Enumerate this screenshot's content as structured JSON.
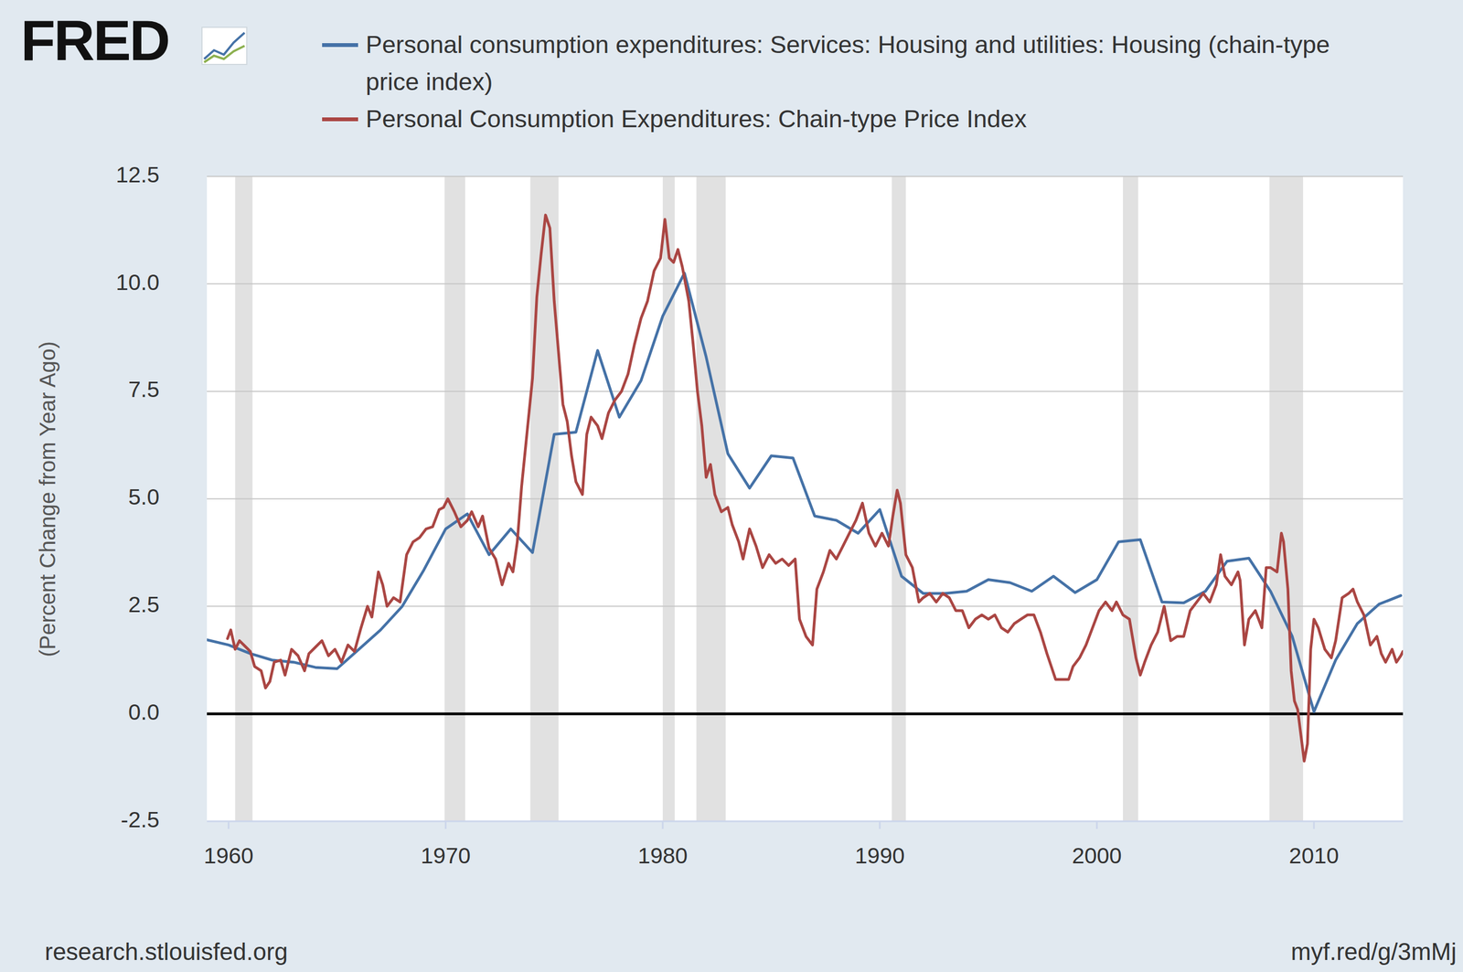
{
  "chart_data": {
    "type": "line",
    "logo": "FRED",
    "y_label": "(Percent Change from Year Ago)",
    "source": "research.stlouisfed.org",
    "short_url": "myf.red/g/3mMj",
    "xlim": [
      1959,
      2014.1
    ],
    "xticks": [
      1960,
      1970,
      1980,
      1990,
      2000,
      2010
    ],
    "ylim": [
      -2.5,
      12.5
    ],
    "yticks": [
      -2.5,
      {
        "value": 0,
        "label": "0.0"
      },
      2.5,
      {
        "value": 5,
        "label": "5.0"
      },
      7.5,
      {
        "value": 10,
        "label": "10.0"
      },
      12.5
    ],
    "grid": true,
    "legend": "top",
    "recessions": [
      [
        1960.3,
        1961.1
      ],
      [
        1969.95,
        1970.9
      ],
      [
        1973.9,
        1975.2
      ],
      [
        1980.0,
        1980.55
      ],
      [
        1981.55,
        1982.9
      ],
      [
        1990.55,
        1991.2
      ],
      [
        2001.2,
        2001.9
      ],
      [
        2007.95,
        2009.5
      ]
    ],
    "series": [
      {
        "name": "Personal consumption expenditures: Services: Housing and utilities: Housing (chain-type price index)",
        "color": "#4572a7",
        "x": [
          1959,
          1960,
          1961,
          1962,
          1963,
          1964,
          1965,
          1966,
          1967,
          1968,
          1969,
          1970,
          1971,
          1972,
          1973,
          1974,
          1975,
          1976,
          1977,
          1978,
          1979,
          1980,
          1981,
          1982,
          1983,
          1984,
          1985,
          1986,
          1987,
          1988,
          1989,
          1990,
          1991,
          1992,
          1993,
          1994,
          1995,
          1996,
          1997,
          1998,
          1999,
          2000,
          2001,
          2002,
          2003,
          2004,
          2005,
          2006,
          2007,
          2008,
          2009,
          2010,
          2011,
          2012,
          2013,
          2014
        ],
        "values": [
          1.72,
          1.6,
          1.4,
          1.25,
          1.2,
          1.08,
          1.05,
          1.5,
          1.95,
          2.5,
          3.35,
          4.3,
          4.65,
          3.7,
          4.3,
          3.75,
          6.5,
          6.55,
          8.45,
          6.9,
          7.75,
          9.25,
          10.25,
          8.3,
          6.05,
          5.25,
          6.0,
          5.95,
          4.6,
          4.5,
          4.2,
          4.75,
          3.2,
          2.8,
          2.8,
          2.85,
          3.12,
          3.05,
          2.85,
          3.2,
          2.82,
          3.12,
          4.0,
          4.05,
          2.6,
          2.58,
          2.85,
          3.55,
          3.62,
          2.85,
          1.8,
          0.05,
          1.25,
          2.1,
          2.55,
          2.75
        ]
      },
      {
        "name": "Personal Consumption Expenditures: Chain-type Price Index",
        "color": "#aa4643",
        "x": [
          1959.95,
          1960.1,
          1960.3,
          1960.5,
          1960.8,
          1961.0,
          1961.2,
          1961.5,
          1961.7,
          1961.9,
          1962.1,
          1962.4,
          1962.6,
          1962.9,
          1963.2,
          1963.5,
          1963.7,
          1964.0,
          1964.3,
          1964.6,
          1964.9,
          1965.2,
          1965.5,
          1965.8,
          1966.1,
          1966.4,
          1966.6,
          1966.9,
          1967.1,
          1967.3,
          1967.6,
          1967.9,
          1968.2,
          1968.5,
          1968.8,
          1969.1,
          1969.4,
          1969.7,
          1969.9,
          1970.1,
          1970.4,
          1970.7,
          1971.0,
          1971.2,
          1971.5,
          1971.7,
          1972.0,
          1972.3,
          1972.6,
          1972.9,
          1973.1,
          1973.3,
          1973.5,
          1973.7,
          1974.0,
          1974.2,
          1974.4,
          1974.6,
          1974.8,
          1975.0,
          1975.2,
          1975.4,
          1975.6,
          1975.8,
          1976.0,
          1976.3,
          1976.5,
          1976.7,
          1977.0,
          1977.2,
          1977.5,
          1977.8,
          1978.1,
          1978.4,
          1978.7,
          1979.0,
          1979.3,
          1979.6,
          1979.9,
          1980.1,
          1980.3,
          1980.5,
          1980.7,
          1980.9,
          1981.2,
          1981.4,
          1981.6,
          1981.8,
          1982.0,
          1982.2,
          1982.4,
          1982.7,
          1983.0,
          1983.2,
          1983.5,
          1983.7,
          1984.0,
          1984.3,
          1984.6,
          1984.9,
          1985.2,
          1985.5,
          1985.8,
          1986.1,
          1986.3,
          1986.6,
          1986.9,
          1987.1,
          1987.4,
          1987.7,
          1988.0,
          1988.3,
          1988.6,
          1988.9,
          1989.2,
          1989.5,
          1989.8,
          1990.1,
          1990.4,
          1990.6,
          1990.8,
          1990.95,
          1991.2,
          1991.5,
          1991.8,
          1992.0,
          1992.3,
          1992.6,
          1992.9,
          1993.2,
          1993.5,
          1993.8,
          1994.1,
          1994.4,
          1994.7,
          1995.0,
          1995.3,
          1995.6,
          1995.9,
          1996.2,
          1996.5,
          1996.8,
          1997.1,
          1997.4,
          1997.7,
          1997.9,
          1998.1,
          1998.4,
          1998.7,
          1998.9,
          1999.2,
          1999.5,
          1999.8,
          2000.1,
          2000.4,
          2000.7,
          2000.9,
          2001.2,
          2001.5,
          2001.8,
          2002.0,
          2002.2,
          2002.5,
          2002.8,
          2003.1,
          2003.4,
          2003.7,
          2004.0,
          2004.3,
          2004.6,
          2004.9,
          2005.2,
          2005.5,
          2005.7,
          2005.9,
          2006.2,
          2006.5,
          2006.6,
          2006.8,
          2007.0,
          2007.3,
          2007.6,
          2007.8,
          2008.0,
          2008.3,
          2008.5,
          2008.6,
          2008.8,
          2008.95,
          2009.1,
          2009.25,
          2009.4,
          2009.55,
          2009.7,
          2009.85,
          2010.0,
          2010.2,
          2010.5,
          2010.8,
          2011.0,
          2011.3,
          2011.6,
          2011.8,
          2012.0,
          2012.3,
          2012.6,
          2012.9,
          2013.1,
          2013.3,
          2013.6,
          2013.8,
          2014.0,
          2014.1
        ],
        "values": [
          1.75,
          1.95,
          1.5,
          1.7,
          1.55,
          1.45,
          1.1,
          1.0,
          0.6,
          0.75,
          1.2,
          1.25,
          0.9,
          1.5,
          1.35,
          1.0,
          1.4,
          1.55,
          1.7,
          1.35,
          1.5,
          1.2,
          1.6,
          1.45,
          2.0,
          2.5,
          2.25,
          3.3,
          3.0,
          2.5,
          2.7,
          2.6,
          3.7,
          4.0,
          4.1,
          4.3,
          4.35,
          4.75,
          4.8,
          5.0,
          4.7,
          4.35,
          4.5,
          4.7,
          4.35,
          4.6,
          3.85,
          3.6,
          3.0,
          3.5,
          3.3,
          4.0,
          5.3,
          6.3,
          7.8,
          9.7,
          10.7,
          11.6,
          11.3,
          9.6,
          8.4,
          7.2,
          6.8,
          6.0,
          5.4,
          5.1,
          6.5,
          6.9,
          6.7,
          6.4,
          7.0,
          7.3,
          7.5,
          7.9,
          8.6,
          9.2,
          9.6,
          10.3,
          10.6,
          11.5,
          10.6,
          10.5,
          10.8,
          10.4,
          9.6,
          8.6,
          7.5,
          6.7,
          5.5,
          5.8,
          5.1,
          4.7,
          4.8,
          4.4,
          4.0,
          3.6,
          4.3,
          3.9,
          3.4,
          3.7,
          3.5,
          3.6,
          3.45,
          3.6,
          2.2,
          1.8,
          1.6,
          2.9,
          3.3,
          3.8,
          3.6,
          3.9,
          4.2,
          4.5,
          4.9,
          4.2,
          3.9,
          4.2,
          3.9,
          4.6,
          5.2,
          4.9,
          3.7,
          3.4,
          2.6,
          2.7,
          2.8,
          2.6,
          2.8,
          2.7,
          2.4,
          2.4,
          2.0,
          2.2,
          2.3,
          2.2,
          2.3,
          2.0,
          1.9,
          2.1,
          2.2,
          2.3,
          2.3,
          1.9,
          1.4,
          1.1,
          0.8,
          0.8,
          0.8,
          1.1,
          1.3,
          1.6,
          2.0,
          2.4,
          2.6,
          2.4,
          2.6,
          2.3,
          2.2,
          1.3,
          0.9,
          1.2,
          1.6,
          1.9,
          2.5,
          1.7,
          1.8,
          1.8,
          2.4,
          2.6,
          2.8,
          2.6,
          3.0,
          3.7,
          3.2,
          3.0,
          3.3,
          3.1,
          1.6,
          2.2,
          2.4,
          2.0,
          3.4,
          3.4,
          3.3,
          4.2,
          4.0,
          2.9,
          1.0,
          0.3,
          0.1,
          -0.5,
          -1.1,
          -0.7,
          1.5,
          2.2,
          2.0,
          1.5,
          1.3,
          1.7,
          2.7,
          2.8,
          2.9,
          2.6,
          2.3,
          1.6,
          1.8,
          1.4,
          1.2,
          1.5,
          1.2,
          1.35,
          1.45
        ]
      }
    ]
  }
}
